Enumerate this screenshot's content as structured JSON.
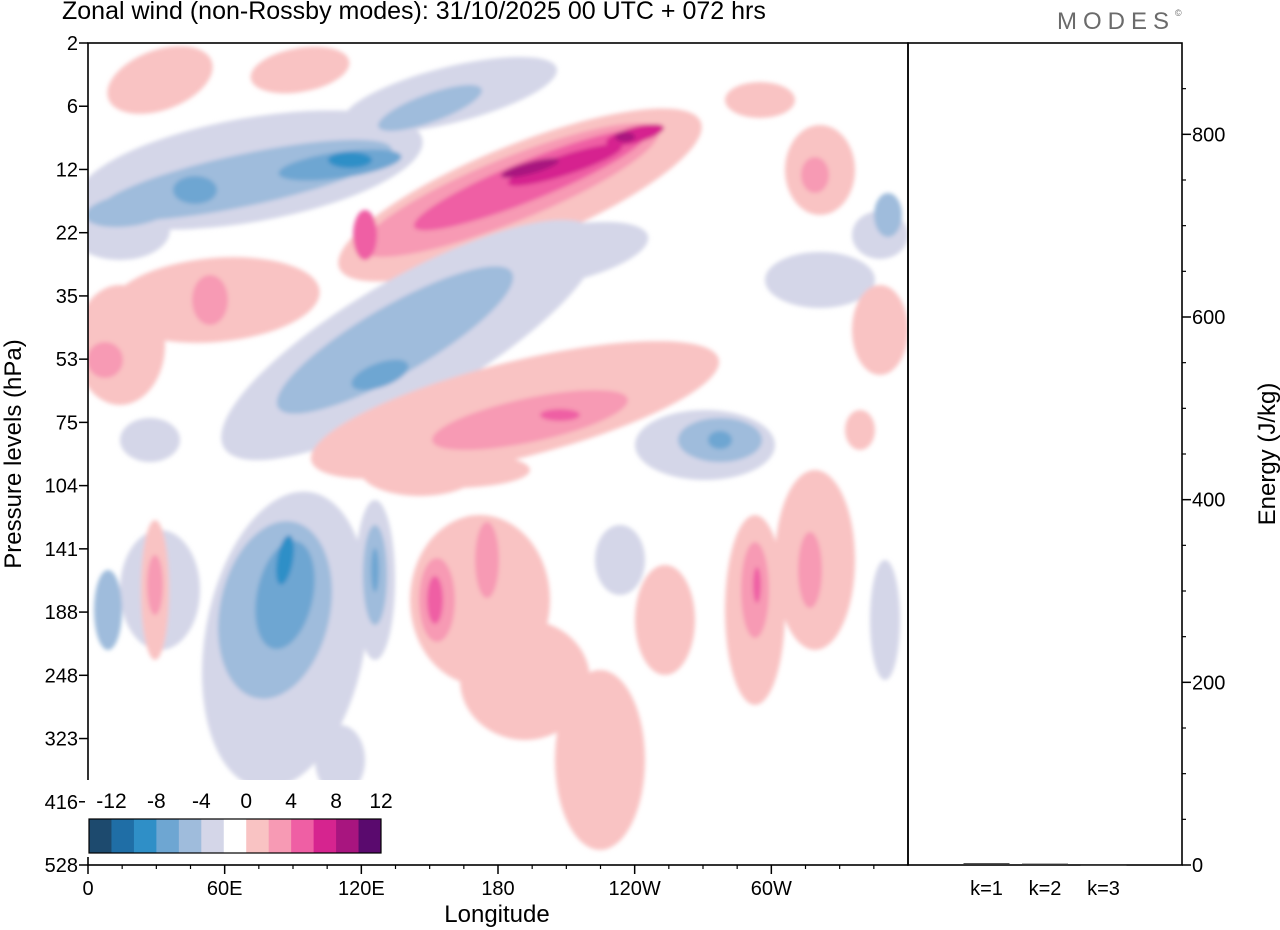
{
  "chart_data": [
    {
      "type": "heatmap",
      "title": "Zonal wind (non-Rossby modes):  31/10/2025  00 UTC  + 072 hrs",
      "xlabel": "Longitude",
      "ylabel": "Pressure levels (hPa)",
      "x_ticks": [
        "0",
        "60E",
        "120E",
        "180",
        "120W",
        "60W"
      ],
      "x_tick_values": [
        0,
        60,
        120,
        180,
        240,
        300
      ],
      "xlim": [
        0,
        360
      ],
      "y_ticks": [
        "2",
        "6",
        "12",
        "22",
        "35",
        "53",
        "75",
        "104",
        "141",
        "188",
        "248",
        "323",
        "416",
        "528"
      ],
      "colorbar": {
        "tick_labels": [
          "-12",
          "-8",
          "-4",
          "0",
          "4",
          "8",
          "12"
        ],
        "levels": [
          -14,
          -12,
          -10,
          -8,
          -6,
          -4,
          -2,
          2,
          4,
          6,
          8,
          10,
          12,
          14
        ],
        "colors": [
          "#1d4a6e",
          "#1f6ea6",
          "#2f8fc7",
          "#6ea6d2",
          "#9fbcdc",
          "#d4d6e8",
          "#ffffff",
          "#f9c3c3",
          "#f79ab4",
          "#ef5fa4",
          "#d6248f",
          "#a8157f",
          "#5a0a6e"
        ]
      },
      "features": [
        {
          "name": "upper-easterly-band",
          "sign": "negative",
          "max_abs": 10,
          "lon_range": [
            0,
            150
          ],
          "levels_hPa": [
            6,
            22
          ]
        },
        {
          "name": "upper-westerly-jet",
          "sign": "positive",
          "max_abs": 14,
          "lon_range": [
            110,
            260
          ],
          "levels_hPa": [
            8,
            35
          ]
        },
        {
          "name": "mid-easterly-band",
          "sign": "negative",
          "max_abs": 8,
          "lon_range": [
            70,
            175
          ],
          "levels_hPa": [
            30,
            120
          ]
        },
        {
          "name": "mid-westerly-band",
          "sign": "positive",
          "max_abs": 10,
          "lon_range": [
            125,
            260
          ],
          "levels_hPa": [
            50,
            140
          ]
        },
        {
          "name": "lower-easterly-core",
          "sign": "negative",
          "max_abs": 10,
          "lon_range": [
            55,
            110
          ],
          "levels_hPa": [
            130,
            400
          ]
        },
        {
          "name": "lower-westerly-core",
          "sign": "positive",
          "max_abs": 8,
          "lon_range": [
            140,
            175
          ],
          "levels_hPa": [
            130,
            260
          ]
        }
      ]
    },
    {
      "type": "bar",
      "ylabel": "Energy (J/kg)",
      "categories": [
        "k=1",
        "k=2",
        "k=3"
      ],
      "values": [
        2,
        1.5,
        1
      ],
      "ylim": [
        0,
        900
      ],
      "y_ticks": [
        "0",
        "200",
        "400",
        "600",
        "800"
      ],
      "y_tick_values": [
        0,
        200,
        400,
        600,
        800
      ]
    }
  ],
  "header": {
    "title": "Zonal wind (non-Rossby modes):  31/10/2025  00 UTC  + 072 hrs",
    "logo": "MODES",
    "logo_mark": "©"
  }
}
